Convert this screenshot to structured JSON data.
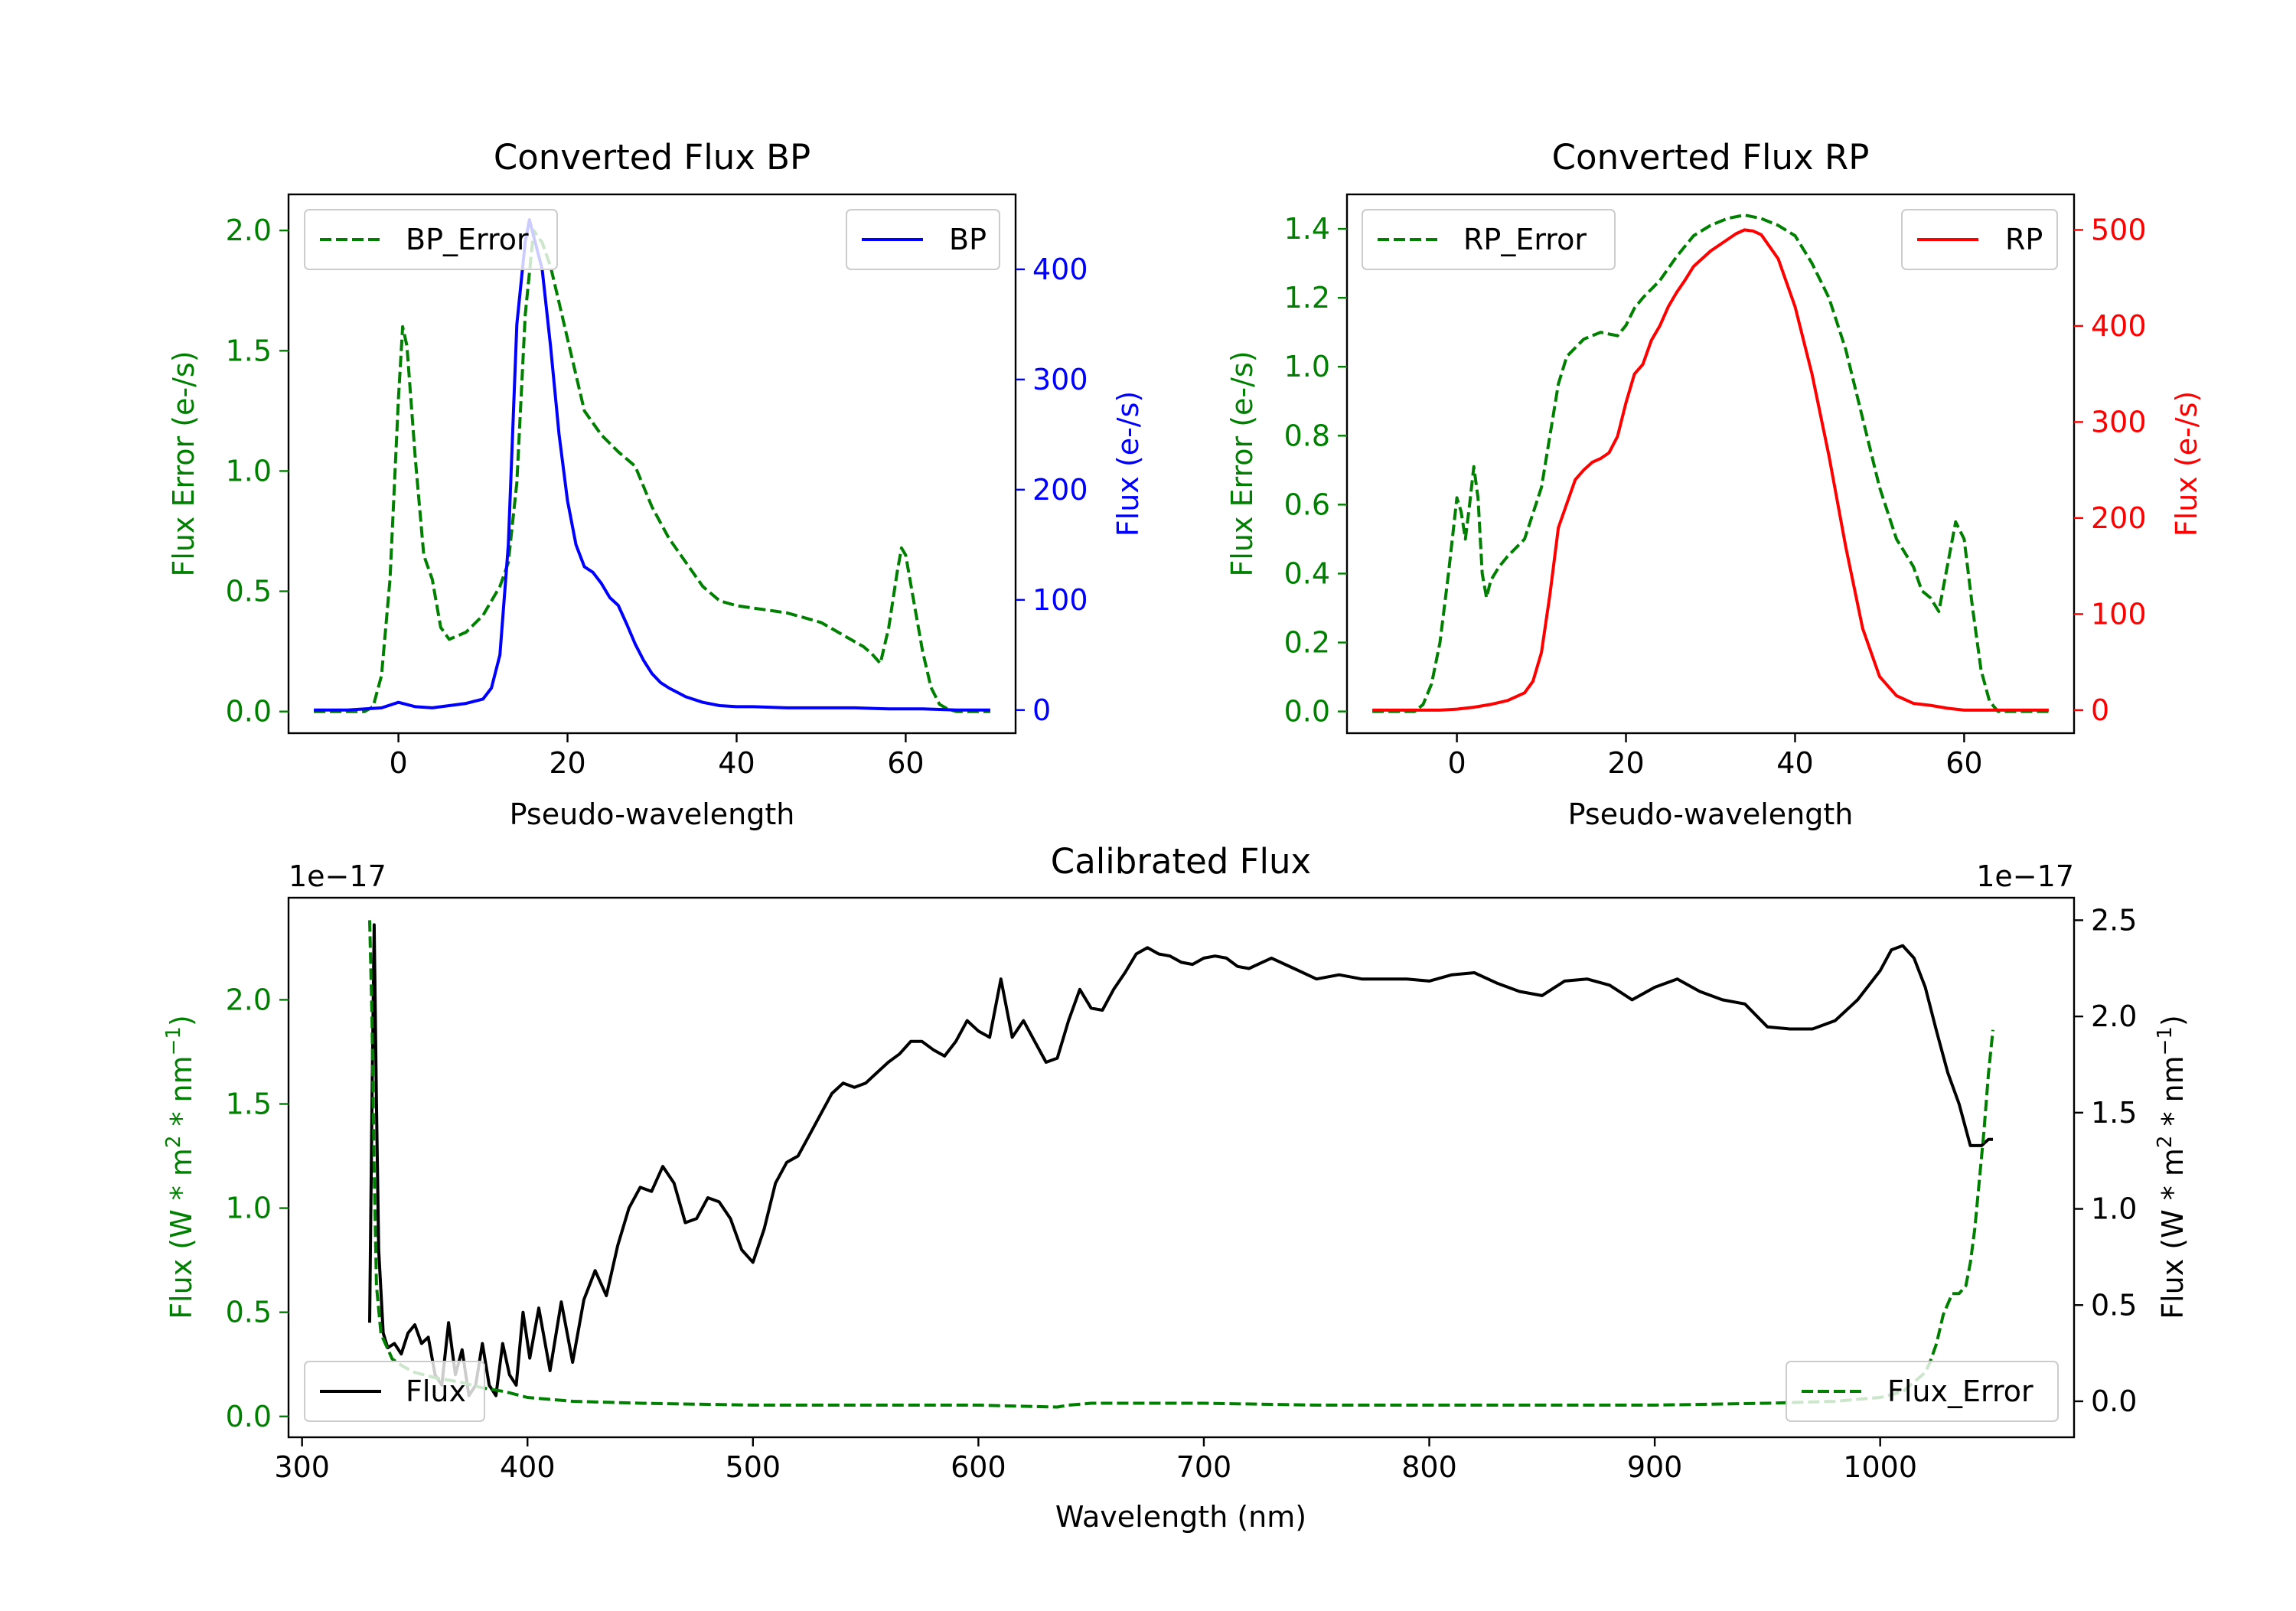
{
  "colors": {
    "bp_error": "#008000",
    "bp": "#0000ff",
    "rp_error": "#008000",
    "rp": "#ff0000",
    "flux": "#000000",
    "flux_error": "#008000",
    "axis": "#000000",
    "legend_border": "#cccccc"
  },
  "chart_data": [
    {
      "id": "bp",
      "type": "line",
      "title": "Converted Flux BP",
      "xlabel": "Pseudo-wavelength",
      "ylabel_left": "Flux Error (e-/s)",
      "ylabel_right": "Flux (e-/s)",
      "xlim": [
        -13,
        73
      ],
      "ylim_left": [
        -0.09,
        2.15
      ],
      "ylim_right": [
        -21,
        468
      ],
      "x_ticks": [
        "0",
        "20",
        "40",
        "60"
      ],
      "y_ticks_left": [
        "0.0",
        "0.5",
        "1.0",
        "1.5",
        "2.0"
      ],
      "y_ticks_right": [
        "0",
        "100",
        "200",
        "300",
        "400"
      ],
      "legend_left": "BP_Error",
      "legend_right": "BP",
      "series": [
        {
          "name": "BP_Error",
          "axis": "left",
          "style": "dashed",
          "color": "#008000",
          "x": [
            -10,
            -4,
            -3,
            -2,
            -1,
            0,
            0.5,
            1,
            2,
            3,
            4,
            5,
            6,
            8,
            10,
            12,
            13,
            14,
            15,
            16,
            17,
            18,
            19,
            20,
            22,
            24,
            26,
            28,
            30,
            32,
            34,
            36,
            38,
            40,
            42,
            44,
            46,
            48,
            50,
            52,
            54,
            55,
            56,
            57,
            58,
            59,
            59.5,
            60,
            61,
            62,
            63,
            64,
            65,
            66,
            70
          ],
          "y": [
            0,
            0,
            0.02,
            0.15,
            0.55,
            1.3,
            1.6,
            1.52,
            1.05,
            0.65,
            0.55,
            0.35,
            0.3,
            0.33,
            0.4,
            0.52,
            0.62,
            0.95,
            1.65,
            2.0,
            1.95,
            1.85,
            1.7,
            1.55,
            1.25,
            1.15,
            1.08,
            1.02,
            0.85,
            0.72,
            0.62,
            0.52,
            0.46,
            0.44,
            0.43,
            0.42,
            0.41,
            0.39,
            0.37,
            0.33,
            0.29,
            0.27,
            0.24,
            0.2,
            0.35,
            0.58,
            0.68,
            0.65,
            0.45,
            0.25,
            0.1,
            0.03,
            0.01,
            0,
            0
          ]
        },
        {
          "name": "BP",
          "axis": "right",
          "style": "solid",
          "color": "#0000ff",
          "x": [
            -10,
            -6,
            -2,
            0,
            1,
            2,
            4,
            6,
            8,
            10,
            11,
            12,
            13,
            14,
            15,
            15.5,
            16,
            17,
            18,
            19,
            20,
            21,
            22,
            23,
            24,
            25,
            26,
            27,
            28,
            29,
            30,
            31,
            32,
            34,
            36,
            38,
            40,
            42,
            46,
            50,
            54,
            58,
            62,
            66,
            70
          ],
          "y": [
            0,
            0,
            2,
            7,
            5,
            3,
            2,
            4,
            6,
            10,
            20,
            50,
            150,
            350,
            425,
            445,
            430,
            400,
            330,
            250,
            190,
            150,
            130,
            125,
            115,
            102,
            95,
            78,
            60,
            45,
            33,
            25,
            20,
            12,
            7,
            4,
            3,
            3,
            2,
            2,
            2,
            1,
            1,
            0,
            0
          ]
        }
      ]
    },
    {
      "id": "rp",
      "type": "line",
      "title": "Converted Flux RP",
      "xlabel": "Pseudo-wavelength",
      "ylabel_left": "Flux Error (e-/s)",
      "ylabel_right": "Flux (e-/s)",
      "xlim": [
        -13,
        73
      ],
      "ylim_left": [
        -0.063,
        1.5
      ],
      "ylim_right": [
        -24,
        537
      ],
      "x_ticks": [
        "0",
        "20",
        "40",
        "60"
      ],
      "y_ticks_left": [
        "0.0",
        "0.2",
        "0.4",
        "0.6",
        "0.8",
        "1.0",
        "1.2",
        "1.4"
      ],
      "y_ticks_right": [
        "0",
        "100",
        "200",
        "300",
        "400",
        "500"
      ],
      "legend_left": "RP_Error",
      "legend_right": "RP",
      "series": [
        {
          "name": "RP_Error",
          "axis": "left",
          "style": "dashed",
          "color": "#008000",
          "x": [
            -10,
            -5,
            -4,
            -3,
            -2,
            -1,
            0,
            0.5,
            1,
            1.5,
            2,
            2.5,
            3,
            3.5,
            4,
            5,
            6,
            8,
            10,
            12,
            13,
            15,
            17,
            19,
            20,
            21,
            22,
            24,
            26,
            28,
            30,
            32,
            34,
            36,
            38,
            40,
            42,
            44,
            46,
            48,
            50,
            52,
            54,
            55,
            56,
            57,
            58,
            59,
            60,
            61,
            62,
            63,
            64,
            66,
            70
          ],
          "y": [
            0,
            0,
            0.02,
            0.08,
            0.2,
            0.4,
            0.62,
            0.58,
            0.5,
            0.6,
            0.71,
            0.62,
            0.4,
            0.33,
            0.38,
            0.42,
            0.45,
            0.5,
            0.65,
            0.95,
            1.03,
            1.08,
            1.1,
            1.09,
            1.12,
            1.17,
            1.2,
            1.25,
            1.32,
            1.38,
            1.41,
            1.43,
            1.44,
            1.43,
            1.41,
            1.38,
            1.3,
            1.2,
            1.05,
            0.85,
            0.65,
            0.5,
            0.42,
            0.35,
            0.33,
            0.29,
            0.42,
            0.55,
            0.5,
            0.3,
            0.12,
            0.03,
            0,
            0,
            0
          ]
        },
        {
          "name": "RP",
          "axis": "right",
          "style": "solid",
          "color": "#ff0000",
          "x": [
            -10,
            -4,
            -2,
            0,
            2,
            4,
            6,
            8,
            9,
            10,
            11,
            12,
            13,
            14,
            15,
            16,
            17,
            18,
            19,
            20,
            21,
            22,
            23,
            24,
            25,
            26,
            27,
            28,
            30,
            32,
            33,
            34,
            35,
            36,
            38,
            40,
            42,
            44,
            46,
            48,
            50,
            52,
            54,
            56,
            58,
            60,
            62,
            64,
            66,
            70
          ],
          "y": [
            0,
            0,
            0,
            1,
            3,
            6,
            10,
            18,
            30,
            60,
            120,
            190,
            215,
            240,
            250,
            258,
            262,
            268,
            285,
            320,
            350,
            360,
            385,
            400,
            420,
            435,
            448,
            462,
            478,
            490,
            496,
            500,
            499,
            495,
            470,
            420,
            350,
            265,
            170,
            85,
            35,
            15,
            7,
            5,
            2,
            0,
            0,
            0,
            0,
            0
          ]
        }
      ]
    },
    {
      "id": "calibrated",
      "type": "line",
      "title": "Calibrated Flux",
      "xlabel": "Wavelength (nm)",
      "ylabel_left": "Flux (W * m",
      "ylabel_right": "Flux (W * m",
      "ylabel_units": [
        "2",
        " * nm",
        "−1",
        ")"
      ],
      "offset_left": "1e−17",
      "offset_right": "1e−17",
      "xlim": [
        294,
        1086
      ],
      "ylim_left": [
        -0.1,
        2.49
      ],
      "ylim_right": [
        -0.187,
        2.617
      ],
      "x_ticks": [
        "300",
        "400",
        "500",
        "600",
        "700",
        "800",
        "900",
        "1000"
      ],
      "y_ticks_left": [
        "0.0",
        "0.5",
        "1.0",
        "1.5",
        "2.0"
      ],
      "y_ticks_right": [
        "0.0",
        "0.5",
        "1.0",
        "1.5",
        "2.0",
        "2.5"
      ],
      "legend_left": "Flux",
      "legend_right": "Flux_Error",
      "series": [
        {
          "name": "Flux",
          "axis": "left",
          "style": "solid",
          "color": "#000000",
          "x": [
            330,
            331,
            332,
            333,
            334,
            336,
            338,
            341,
            344,
            347,
            350,
            353,
            356,
            359,
            362,
            365,
            368,
            371,
            374,
            377,
            380,
            383,
            386,
            389,
            392,
            395,
            398,
            401,
            405,
            410,
            415,
            420,
            425,
            430,
            435,
            440,
            445,
            450,
            455,
            460,
            465,
            470,
            475,
            480,
            485,
            490,
            495,
            500,
            505,
            510,
            515,
            520,
            525,
            530,
            535,
            540,
            545,
            550,
            555,
            560,
            565,
            570,
            575,
            580,
            585,
            590,
            595,
            600,
            605,
            610,
            615,
            620,
            625,
            630,
            635,
            640,
            645,
            650,
            655,
            660,
            665,
            670,
            675,
            680,
            685,
            690,
            695,
            700,
            705,
            710,
            715,
            720,
            730,
            740,
            750,
            760,
            770,
            780,
            790,
            800,
            810,
            820,
            830,
            840,
            850,
            860,
            870,
            880,
            890,
            900,
            910,
            920,
            930,
            940,
            950,
            960,
            970,
            980,
            990,
            1000,
            1005,
            1010,
            1015,
            1020,
            1025,
            1030,
            1035,
            1040,
            1045,
            1048,
            1050
          ],
          "y": [
            0.45,
            1.5,
            2.36,
            1.5,
            0.8,
            0.4,
            0.33,
            0.35,
            0.3,
            0.4,
            0.44,
            0.35,
            0.38,
            0.2,
            0.15,
            0.45,
            0.2,
            0.32,
            0.1,
            0.15,
            0.35,
            0.15,
            0.1,
            0.35,
            0.2,
            0.15,
            0.5,
            0.28,
            0.52,
            0.22,
            0.55,
            0.26,
            0.56,
            0.7,
            0.58,
            0.82,
            1.0,
            1.1,
            1.08,
            1.2,
            1.12,
            0.93,
            0.95,
            1.05,
            1.03,
            0.95,
            0.8,
            0.74,
            0.9,
            1.12,
            1.22,
            1.25,
            1.35,
            1.45,
            1.55,
            1.6,
            1.58,
            1.6,
            1.65,
            1.7,
            1.74,
            1.8,
            1.8,
            1.76,
            1.73,
            1.8,
            1.9,
            1.85,
            1.82,
            2.1,
            1.82,
            1.9,
            1.8,
            1.7,
            1.72,
            1.9,
            2.05,
            1.96,
            1.95,
            2.05,
            2.13,
            2.22,
            2.25,
            2.22,
            2.21,
            2.18,
            2.17,
            2.2,
            2.21,
            2.2,
            2.16,
            2.15,
            2.2,
            2.15,
            2.1,
            2.12,
            2.1,
            2.1,
            2.1,
            2.09,
            2.12,
            2.13,
            2.08,
            2.04,
            2.02,
            2.09,
            2.1,
            2.07,
            2.0,
            2.06,
            2.1,
            2.04,
            2.0,
            1.98,
            1.87,
            1.86,
            1.86,
            1.9,
            2.0,
            2.14,
            2.24,
            2.26,
            2.2,
            2.06,
            1.85,
            1.65,
            1.5,
            1.3,
            1.3,
            1.33,
            1.33
          ]
        },
        {
          "name": "Flux_Error",
          "axis": "right",
          "style": "dashed",
          "color": "#008000",
          "x": [
            330,
            331,
            332,
            333,
            335,
            340,
            345,
            350,
            360,
            370,
            380,
            390,
            400,
            420,
            450,
            500,
            550,
            600,
            635,
            640,
            650,
            700,
            750,
            800,
            850,
            900,
            950,
            980,
            1000,
            1010,
            1015,
            1020,
            1022,
            1025,
            1028,
            1032,
            1035,
            1038,
            1040,
            1042,
            1044,
            1046,
            1048,
            1050
          ],
          "y": [
            2.5,
            2.0,
            1.2,
            0.6,
            0.35,
            0.22,
            0.18,
            0.15,
            0.12,
            0.1,
            0.07,
            0.05,
            0.02,
            0.0,
            -0.01,
            -0.02,
            -0.02,
            -0.02,
            -0.03,
            -0.02,
            -0.01,
            -0.01,
            -0.02,
            -0.02,
            -0.02,
            -0.02,
            -0.01,
            0.0,
            0.02,
            0.05,
            0.1,
            0.15,
            0.2,
            0.3,
            0.45,
            0.56,
            0.56,
            0.6,
            0.72,
            0.9,
            1.15,
            1.4,
            1.7,
            1.93
          ]
        }
      ]
    }
  ]
}
